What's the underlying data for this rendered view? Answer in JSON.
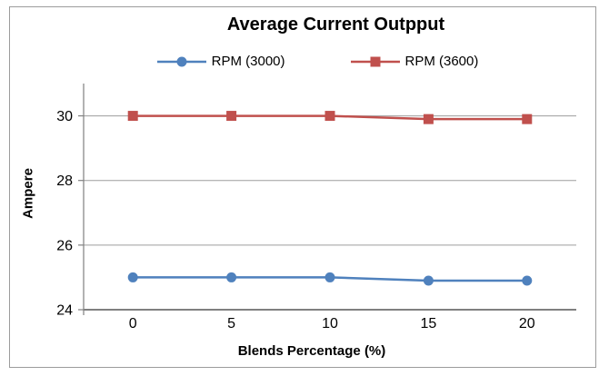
{
  "window": {
    "background": "#ffffff",
    "frame_border_color": "#9c9c9c"
  },
  "chart_data": {
    "type": "line",
    "title": "Average Current Outpput",
    "xlabel": "Blends Percentage (%)",
    "ylabel": "Ampere",
    "categories": [
      "0",
      "5",
      "10",
      "15",
      "20"
    ],
    "series": [
      {
        "name": "RPM (3000)",
        "color": "#4F81BD",
        "marker": "circle",
        "values": [
          25.0,
          25.0,
          25.0,
          24.9,
          24.9
        ]
      },
      {
        "name": "RPM (3600)",
        "color": "#C0504D",
        "marker": "square",
        "values": [
          30.0,
          30.0,
          30.0,
          29.9,
          29.9
        ]
      }
    ],
    "ylim": [
      24,
      31
    ],
    "yticks": [
      24,
      26,
      28,
      30
    ],
    "grid": true,
    "legend_position": "top",
    "gridline_color": "#9d9d9d",
    "axis_color": "#808080",
    "tick_label_color": "#000000"
  }
}
